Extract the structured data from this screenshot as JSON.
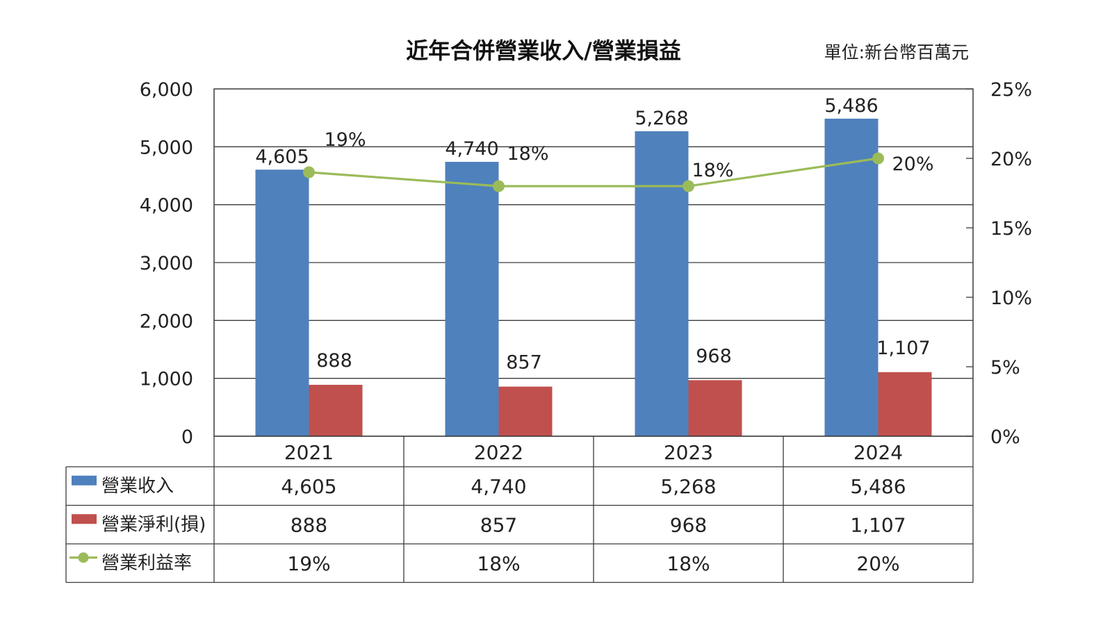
{
  "chart_data": {
    "type": "bar",
    "title": "近年合併營業收入/營業損益",
    "unit_note": "單位:新台幣百萬元",
    "categories": [
      "2021",
      "2022",
      "2023",
      "2024"
    ],
    "y_left": {
      "ylim": [
        0,
        6000
      ],
      "ticks": [
        "0",
        "1,000",
        "2,000",
        "3,000",
        "4,000",
        "5,000",
        "6,000"
      ]
    },
    "y_right": {
      "ylim": [
        0,
        25
      ],
      "ticks": [
        "0%",
        "5%",
        "10%",
        "15%",
        "20%",
        "25%"
      ]
    },
    "grid": true,
    "legend_position": "data-table",
    "series": [
      {
        "name": "營業收入",
        "type": "bar",
        "axis": "left",
        "color": "#4F81BD",
        "values": [
          4605,
          4740,
          5268,
          5486
        ],
        "labels": [
          "4,605",
          "4,740",
          "5,268",
          "5,486"
        ]
      },
      {
        "name": "營業淨利(損)",
        "type": "bar",
        "axis": "left",
        "color": "#C0504D",
        "values": [
          888,
          857,
          968,
          1107
        ],
        "labels": [
          "888",
          "857",
          "968",
          "1,107"
        ]
      },
      {
        "name": "營業利益率",
        "type": "line",
        "axis": "right",
        "color": "#9BBB59",
        "values": [
          19,
          18,
          18,
          20
        ],
        "labels": [
          "19%",
          "18%",
          "18%",
          "20%"
        ]
      }
    ]
  }
}
